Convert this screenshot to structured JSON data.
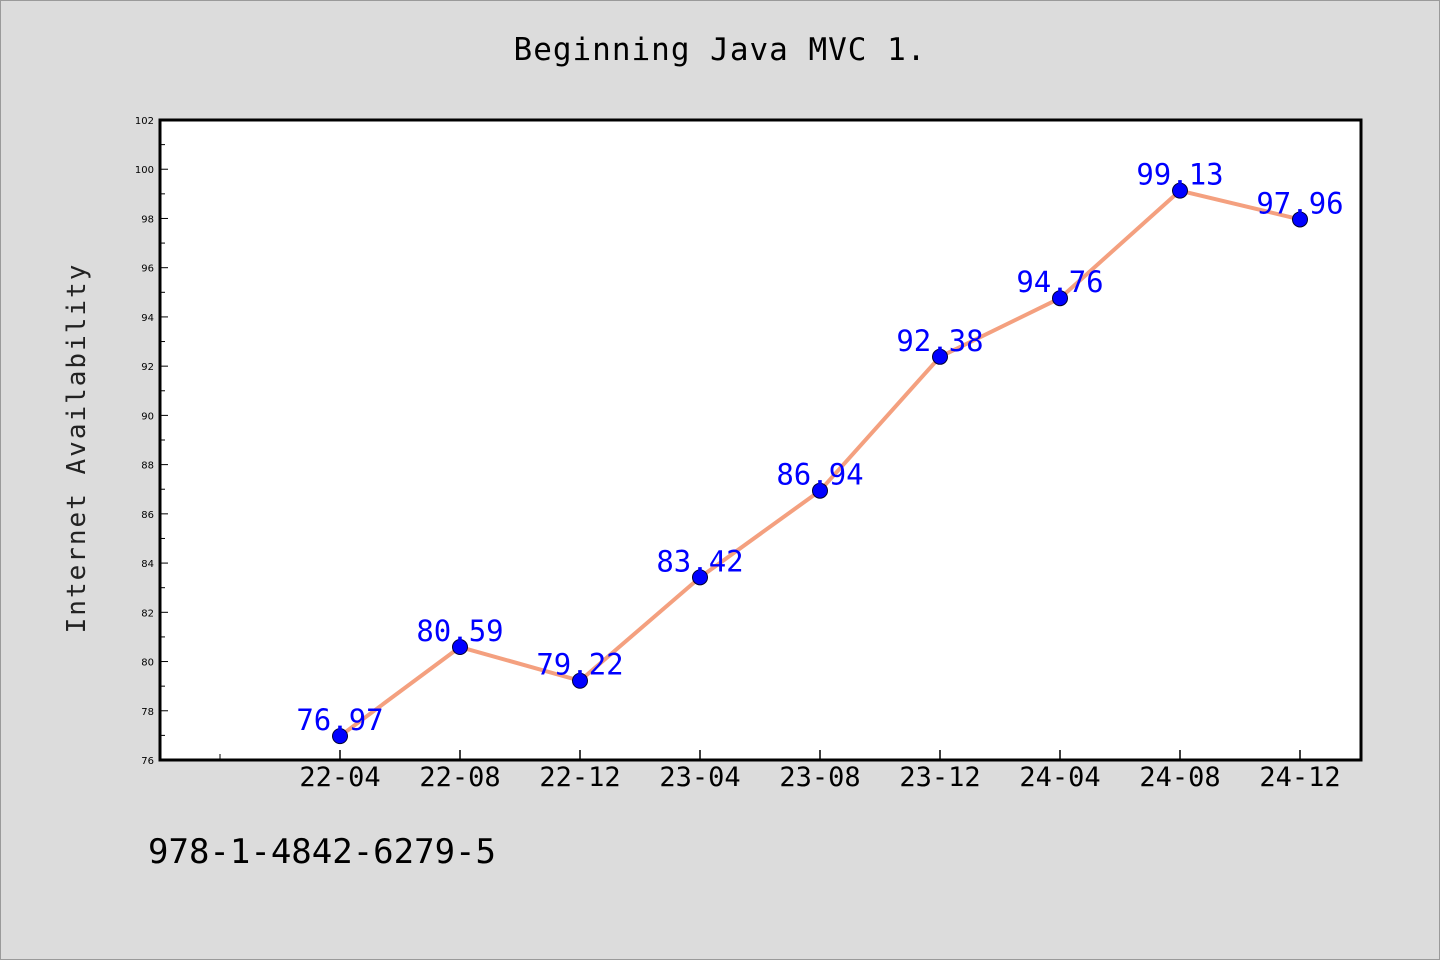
{
  "colors": {
    "background": "#dcdcdc",
    "plot_background": "#ffffff",
    "line": "#f4a07f",
    "marker": "#0000ff",
    "data_label": "#0000ff"
  },
  "footer": {
    "code": "978-1-4842-6279-5"
  },
  "chart_data": {
    "type": "line",
    "title": "Beginning Java MVC 1.",
    "xlabel": "",
    "ylabel": "Internet Availability",
    "categories": [
      "22-04",
      "22-08",
      "22-12",
      "23-04",
      "23-08",
      "23-12",
      "24-04",
      "24-08",
      "24-12"
    ],
    "series": [
      {
        "values": [
          76.97,
          80.59,
          79.22,
          83.42,
          86.94,
          92.38,
          94.76,
          99.13,
          97.96
        ]
      }
    ],
    "data_labels": [
      "76.97",
      "80.59",
      "79.22",
      "83.42",
      "86.94",
      "92.38",
      "94.76",
      "99.13",
      "97.96"
    ],
    "ylim": [
      76,
      102
    ],
    "yticks": [
      76,
      78,
      80,
      82,
      84,
      86,
      88,
      90,
      92,
      94,
      96,
      98,
      100,
      102
    ],
    "grid": false,
    "legend": false
  }
}
